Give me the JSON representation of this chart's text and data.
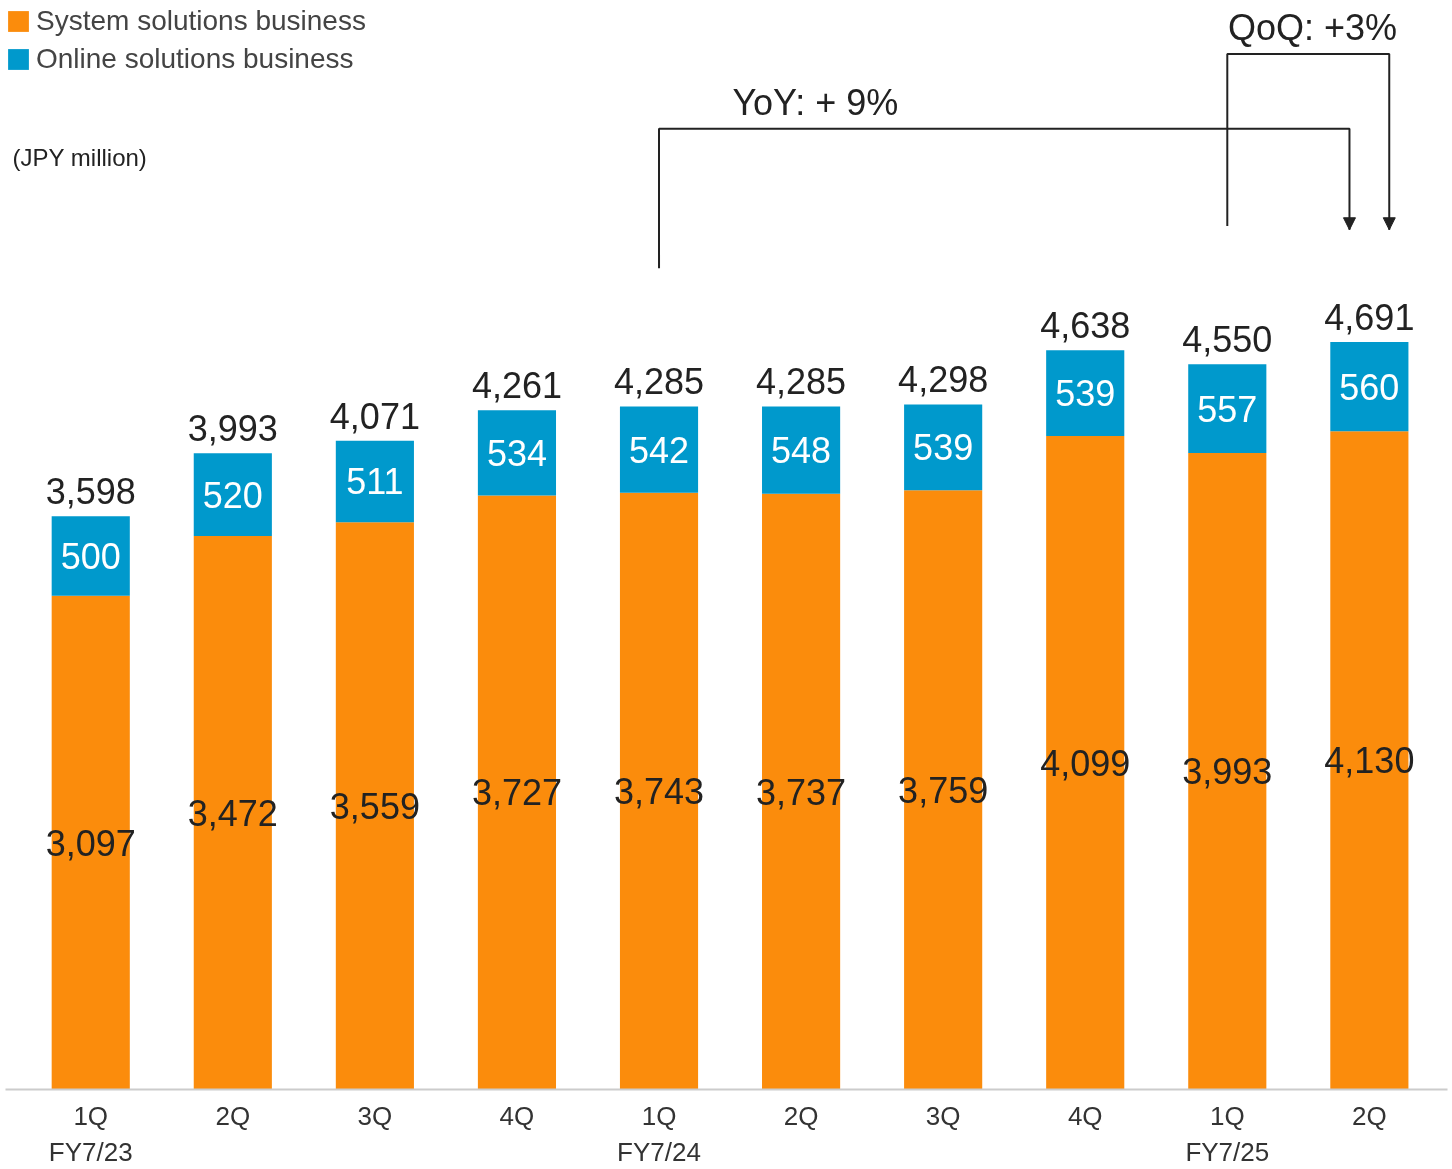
{
  "chart_data": {
    "type": "bar",
    "stacked": true,
    "legend": "top left",
    "grid": false,
    "tick_labels": "x",
    "categories": [
      "1Q\nFY7/23",
      "2Q",
      "3Q",
      "4Q",
      "1Q\nFY7/24",
      "2Q",
      "3Q",
      "4Q",
      "1Q\nFY7/25",
      "2Q"
    ],
    "series": [
      {
        "name": "System solutions business",
        "color": "#fb8c0c",
        "values": [
          3097,
          3472,
          3559,
          3727,
          3743,
          3737,
          3759,
          4099,
          3993,
          4130
        ],
        "value_labels": [
          "3,097",
          "3,472",
          "3,559",
          "3,727",
          "3,743",
          "3,737",
          "3,759",
          "4,099",
          "3,993",
          "4,130"
        ]
      },
      {
        "name": "Online solutions business",
        "color": "#0099cc",
        "values": [
          500,
          520,
          511,
          534,
          542,
          548,
          539,
          539,
          557,
          560
        ],
        "value_labels": [
          "500",
          "520",
          "511",
          "534",
          "542",
          "548",
          "539",
          "539",
          "557",
          "560"
        ]
      }
    ],
    "totals": [
      "3,598",
      "3,993",
      "4,071",
      "4,261",
      "4,285",
      "4,285",
      "4,298",
      "4,638",
      "4,550",
      "4,691"
    ],
    "annotations": [
      "(JPY million)",
      "YoY: + 9%",
      "QoQ: +3%"
    ]
  }
}
